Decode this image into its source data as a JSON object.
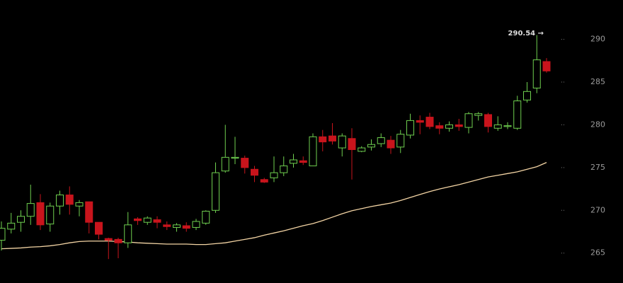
{
  "chart_data": {
    "type": "candlestick",
    "annotation": "290.54 →",
    "up_color": "#6fcf4f",
    "down_color": "#c8141c",
    "ylim": [
      261.5,
      294.6
    ],
    "yticks": [
      265,
      270,
      275,
      280,
      285,
      290
    ],
    "open": [
      266.5,
      267.8,
      268.6,
      269.3,
      270.9,
      268.4,
      270.5,
      271.8,
      270.5,
      271.0,
      268.6,
      266.7,
      266.6,
      266.2,
      269.0,
      268.6,
      268.9,
      268.3,
      268.0,
      268.2,
      268.0,
      268.5,
      270.0,
      274.6,
      276.1,
      276.1,
      274.8,
      273.6,
      273.8,
      274.4,
      275.5,
      275.8,
      275.2,
      278.6,
      278.7,
      277.3,
      278.4,
      276.9,
      277.4,
      277.8,
      278.2,
      277.4,
      278.8,
      280.5,
      280.9,
      279.9,
      279.6,
      280.0,
      279.7,
      281.1,
      281.2,
      279.6,
      279.8,
      279.6,
      282.9,
      284.3,
      287.4
    ],
    "high": [
      268.7,
      269.7,
      270.0,
      273.0,
      271.9,
      270.9,
      272.3,
      272.8,
      271.2,
      271.0,
      268.6,
      266.8,
      266.8,
      269.8,
      269.2,
      269.3,
      269.3,
      268.7,
      268.5,
      268.6,
      269.0,
      270.0,
      275.6,
      280.0,
      278.6,
      276.4,
      275.2,
      273.8,
      276.3,
      276.3,
      276.6,
      276.3,
      279.0,
      279.4,
      280.2,
      279.0,
      279.6,
      277.5,
      278.3,
      279.0,
      278.7,
      279.4,
      281.3,
      281.1,
      281.4,
      280.3,
      280.4,
      280.7,
      281.5,
      281.5,
      281.4,
      281.0,
      280.3,
      283.4,
      285.0,
      290.5,
      287.8
    ],
    "low": [
      265.3,
      267.3,
      267.5,
      268.3,
      267.7,
      267.5,
      269.5,
      269.5,
      269.3,
      267.3,
      266.6,
      264.3,
      264.4,
      265.6,
      268.3,
      268.3,
      267.9,
      267.7,
      267.5,
      267.5,
      267.7,
      268.3,
      269.7,
      274.4,
      275.4,
      274.3,
      273.3,
      273.2,
      273.3,
      274.0,
      275.0,
      275.3,
      275.2,
      276.9,
      277.7,
      276.3,
      273.6,
      276.8,
      277.0,
      277.4,
      276.6,
      276.7,
      278.4,
      278.9,
      279.5,
      278.9,
      279.2,
      279.3,
      279.0,
      280.5,
      279.1,
      279.3,
      279.5,
      279.4,
      282.6,
      283.7,
      286.1
    ],
    "close": [
      267.9,
      268.5,
      269.3,
      270.8,
      268.3,
      270.5,
      271.8,
      270.7,
      270.9,
      268.6,
      267.2,
      266.5,
      266.2,
      268.3,
      268.8,
      269.1,
      268.6,
      268.1,
      268.3,
      267.9,
      268.7,
      269.9,
      274.4,
      276.2,
      276.2,
      275.0,
      274.1,
      273.3,
      274.4,
      275.2,
      275.9,
      275.6,
      278.6,
      278.0,
      278.1,
      278.7,
      277.1,
      277.3,
      277.7,
      278.5,
      277.3,
      278.9,
      280.5,
      280.3,
      279.8,
      279.6,
      280.0,
      279.8,
      281.3,
      281.3,
      279.8,
      280.0,
      279.9,
      282.8,
      283.9,
      287.6,
      286.3
    ],
    "moving_average": {
      "color": "#f3d4a4",
      "values": [
        265.5,
        265.55,
        265.6,
        265.7,
        265.75,
        265.85,
        266.0,
        266.2,
        266.35,
        266.4,
        266.4,
        266.4,
        266.35,
        266.3,
        266.2,
        266.15,
        266.1,
        266.05,
        266.05,
        266.05,
        266.0,
        266.0,
        266.1,
        266.2,
        266.4,
        266.6,
        266.8,
        267.1,
        267.35,
        267.6,
        267.9,
        268.2,
        268.45,
        268.8,
        269.2,
        269.6,
        269.95,
        270.2,
        270.45,
        270.65,
        270.85,
        271.15,
        271.5,
        271.85,
        272.2,
        272.5,
        272.75,
        273.0,
        273.3,
        273.6,
        273.9,
        274.1,
        274.3,
        274.5,
        274.8,
        275.1,
        275.6
      ]
    }
  }
}
